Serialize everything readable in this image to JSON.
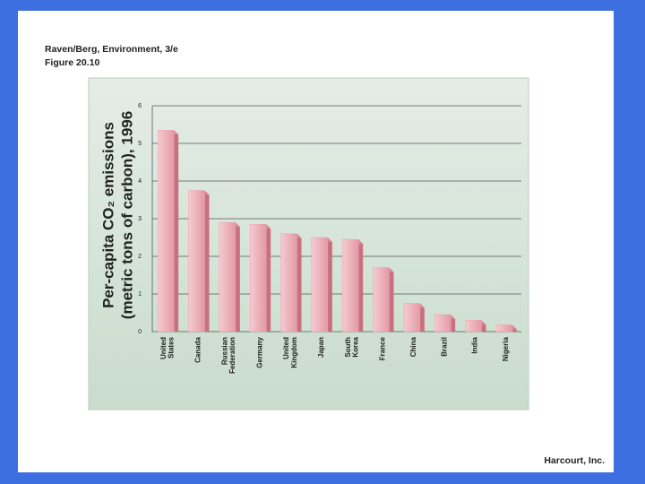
{
  "header": [
    "Raven/Berg, Environment, 3/e",
    "Figure 20.10"
  ],
  "footer": "Harcourt, Inc.",
  "chart_data": {
    "type": "bar",
    "ylabel": [
      "Per-capita CO₂ emissions",
      "(metric tons of carbon), 1996"
    ],
    "categories": [
      "United States",
      "Canada",
      "Russian Federation",
      "Germany",
      "United Kingdom",
      "Japan",
      "South Korea",
      "France",
      "China",
      "Brazil",
      "India",
      "Nigeria"
    ],
    "values": [
      5.35,
      3.75,
      2.9,
      2.85,
      2.6,
      2.5,
      2.45,
      1.7,
      0.75,
      0.45,
      0.3,
      0.18
    ],
    "color": "#e8a3ad",
    "ylim": [
      0,
      6
    ],
    "yticks": [
      0,
      1,
      2,
      3,
      4,
      5,
      6
    ],
    "grid": true
  }
}
